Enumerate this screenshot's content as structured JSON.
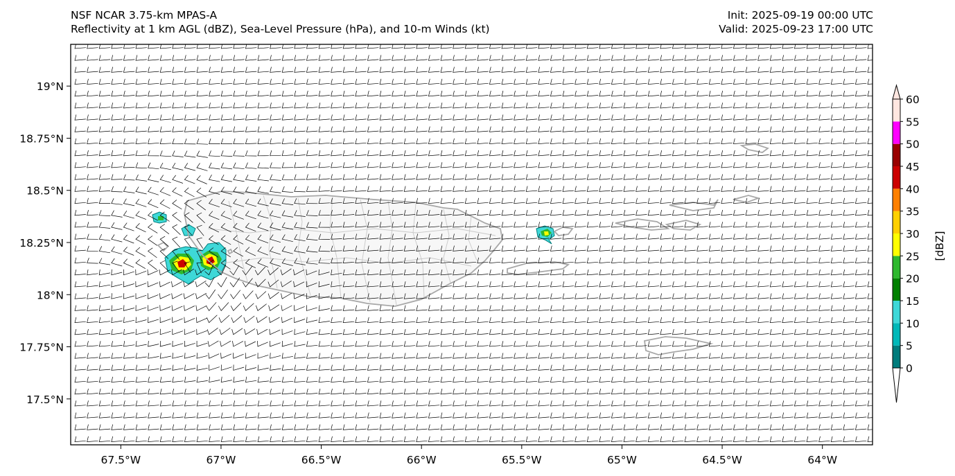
{
  "header": {
    "model_line": "NSF NCAR 3.75-km MPAS-A",
    "field_line": "Reflectivity at 1 km AGL (dBZ), Sea-Level Pressure (hPa), and 10-m Winds (kt)",
    "init_line": "Init: 2025-09-19 00:00 UTC",
    "valid_line": "Valid: 2025-09-23 17:00 UTC"
  },
  "map": {
    "lon_range": [
      -67.75,
      -63.75
    ],
    "lat_range": [
      17.28,
      19.2
    ],
    "lon_ticks": [
      {
        "value": -67.5,
        "label": "67.5°W"
      },
      {
        "value": -67.0,
        "label": "67°W"
      },
      {
        "value": -66.5,
        "label": "66.5°W"
      },
      {
        "value": -66.0,
        "label": "66°W"
      },
      {
        "value": -65.5,
        "label": "65.5°W"
      },
      {
        "value": -65.0,
        "label": "65°W"
      },
      {
        "value": -64.5,
        "label": "64.5°W"
      },
      {
        "value": -64.0,
        "label": "64°W"
      }
    ],
    "lat_ticks": [
      {
        "value": 19.0,
        "label": "19°N"
      },
      {
        "value": 18.75,
        "label": "18.75°N"
      },
      {
        "value": 18.5,
        "label": "18.5°N"
      },
      {
        "value": 18.25,
        "label": "18.25°N"
      },
      {
        "value": 18.0,
        "label": "18°N"
      },
      {
        "value": 17.75,
        "label": "17.75°N"
      },
      {
        "value": 17.5,
        "label": "17.5°N"
      }
    ],
    "colors": {
      "coastline": "#a8a8a8",
      "barb": "#000000",
      "ocean": "#ffffff"
    }
  },
  "colorbar": {
    "label": "[dBZ]",
    "levels": [
      {
        "value": "0",
        "color": "#007c7c"
      },
      {
        "value": "5",
        "color": "#00b8b8"
      },
      {
        "value": "10",
        "color": "#3ed8d8"
      },
      {
        "value": "15",
        "color": "#008000"
      },
      {
        "value": "20",
        "color": "#2eb82e"
      },
      {
        "value": "25",
        "color": "#ffff00"
      },
      {
        "value": "30",
        "color": "#ffd000"
      },
      {
        "value": "35",
        "color": "#ff8000"
      },
      {
        "value": "40",
        "color": "#cc0000"
      },
      {
        "value": "45",
        "color": "#990000"
      },
      {
        "value": "50",
        "color": "#ff00ff"
      },
      {
        "value": "55",
        "color": "#ffe6e0"
      },
      {
        "value": "60",
        "color": ""
      }
    ]
  }
}
